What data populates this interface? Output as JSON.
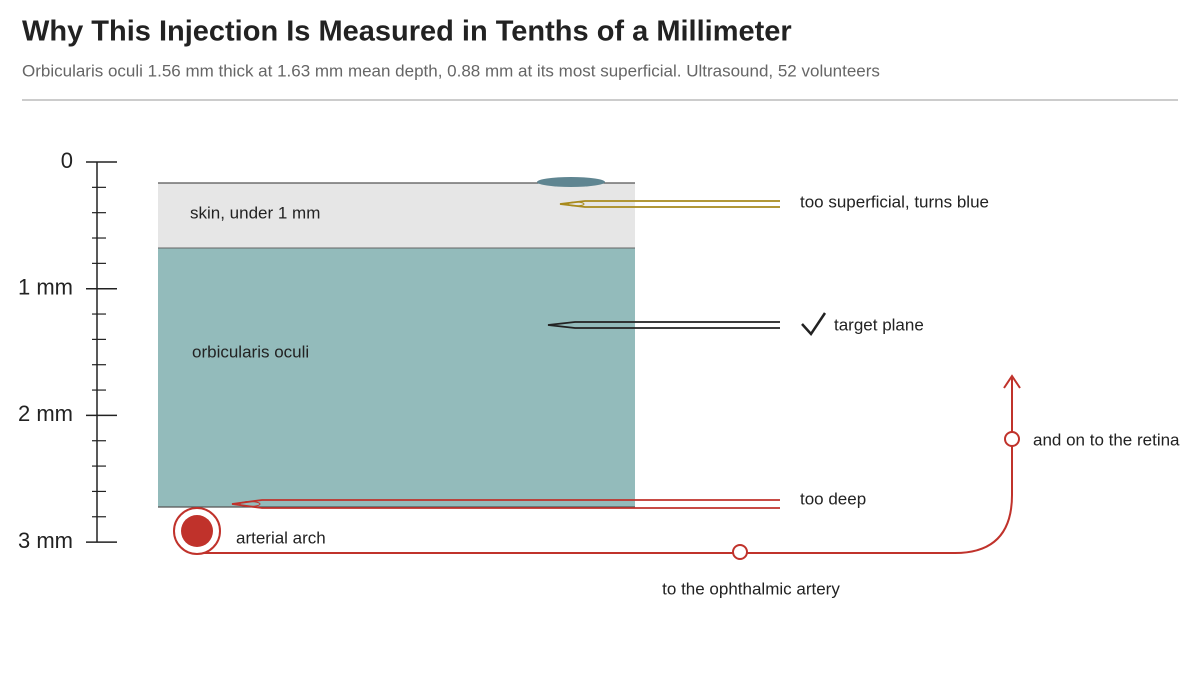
{
  "header": {
    "title": "Why This Injection Is Measured in Tenths of a Millimeter",
    "subtitle": "Orbicularis oculi 1.56 mm thick at 1.63 mm mean depth, 0.88 mm at its most superficial. Ultrasound, 52 volunteers"
  },
  "ruler": {
    "labels": [
      "0",
      "1 mm",
      "2 mm",
      "3 mm"
    ]
  },
  "layers": {
    "skin": "skin, under 1 mm",
    "muscle": "orbicularis oculi"
  },
  "needles": {
    "superficial": "too superficial, turns blue",
    "target": "target plane",
    "deep": "too deep"
  },
  "artery": {
    "arch": "arterial arch",
    "ophthalmic": "to the ophthalmic artery",
    "retina": "and on to the retina"
  }
}
